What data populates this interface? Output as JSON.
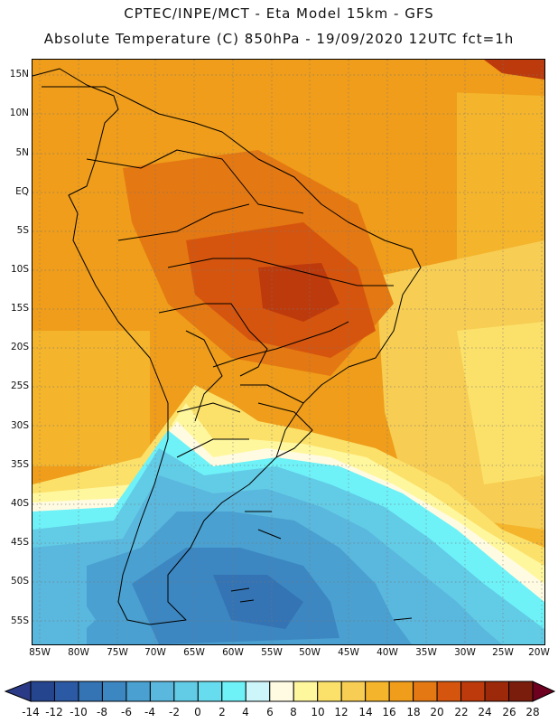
{
  "header": {
    "line1": "CPTEC/INPE/MCT -   Eta Model 15km - GFS",
    "line2": "Absolute Temperature (C) 850hPa - 19/09/2020 12UTC fct=1h"
  },
  "map": {
    "lat_labels": [
      "15N",
      "10N",
      "5N",
      "EQ",
      "5S",
      "10S",
      "15S",
      "20S",
      "25S",
      "30S",
      "35S",
      "40S",
      "45S",
      "50S",
      "55S"
    ],
    "lon_labels": [
      "85W",
      "80W",
      "75W",
      "70W",
      "65W",
      "60W",
      "55W",
      "50W",
      "45W",
      "40W",
      "35W",
      "30W",
      "25W",
      "20W"
    ]
  },
  "colorbar": {
    "labels": [
      "-14",
      "-12",
      "-10",
      "-8",
      "-6",
      "-4",
      "-2",
      "0",
      "2",
      "4",
      "6",
      "8",
      "10",
      "12",
      "14",
      "16",
      "18",
      "20",
      "22",
      "24",
      "26",
      "28"
    ],
    "under_color": "#2a3a86",
    "over_color": "#6e0020",
    "colors": [
      "#26458f",
      "#2b59a3",
      "#3473b4",
      "#3c87c2",
      "#4aa0d0",
      "#5ab7dd",
      "#62cbe6",
      "#66dcee",
      "#6ef2f8",
      "#cdf6fb",
      "#fffbe2",
      "#fff79e",
      "#fbe16a",
      "#f7cd53",
      "#f4b42c",
      "#ef9d1a",
      "#e47812",
      "#d5550e",
      "#bd3a0c",
      "#9c2a0a",
      "#7a1d0d"
    ]
  }
}
